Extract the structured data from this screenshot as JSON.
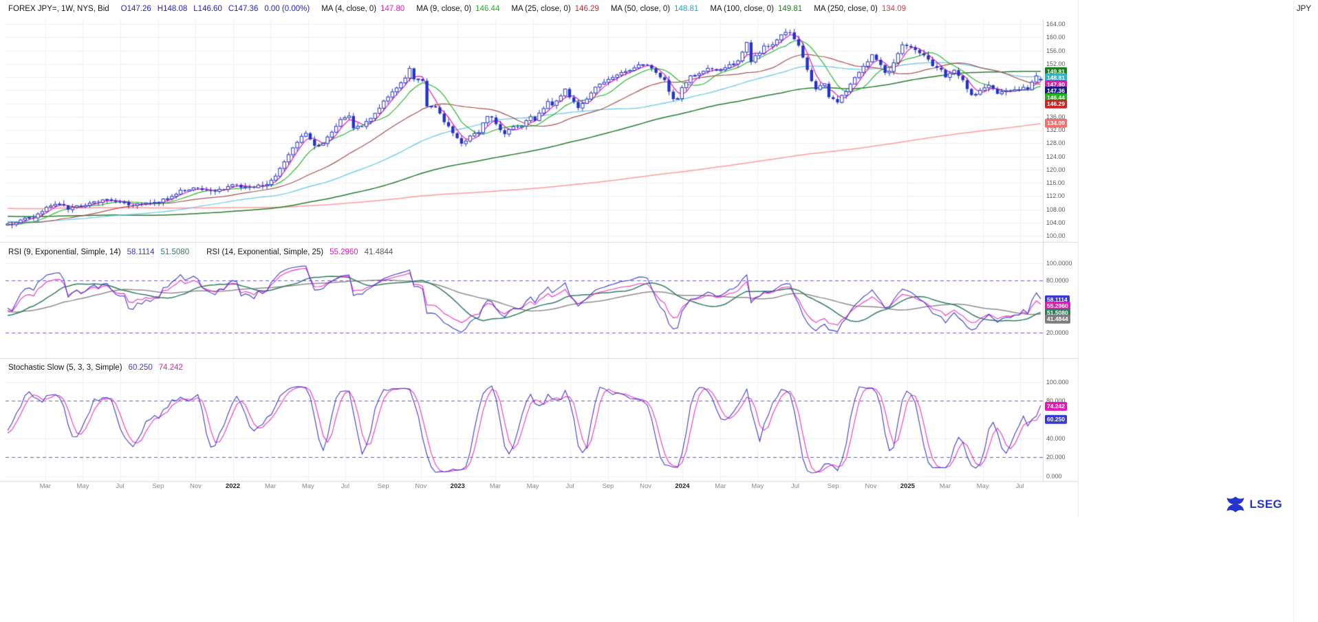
{
  "header": {
    "instrument": "FOREX JPY=, 1W, NYS, Bid",
    "ohlc": {
      "open": "O147.26",
      "high": "H148.08",
      "low": "L146.60",
      "close": "C147.36",
      "change": "0.00 (0.00%)"
    },
    "ohlc_color": "#2121cc",
    "ma_legend": [
      {
        "label": "MA (4, close, 0)",
        "value": "147.80",
        "color": "#e618b4"
      },
      {
        "label": "MA (9, close, 0)",
        "value": "146.44",
        "color": "#23b123"
      },
      {
        "label": "MA (25, close, 0)",
        "value": "146.29",
        "color": "#c62828"
      },
      {
        "label": "MA (50, close, 0)",
        "value": "148.81",
        "color": "#1ba7c9"
      },
      {
        "label": "MA (100, close, 0)",
        "value": "149.81",
        "color": "#1e7d1e"
      },
      {
        "label": "MA (250, close, 0)",
        "value": "134.09",
        "color": "#e23b3b"
      }
    ]
  },
  "right_tab": {
    "label": "JPY"
  },
  "rsi_panel": {
    "title1": "RSI (9, Exponential, Simple, 14)",
    "value1": "58.1114",
    "value2": "51.5080",
    "title2": "RSI (14, Exponential, Simple, 25)",
    "value3": "55.2960",
    "value4": "41.4844",
    "axis_labels": [
      {
        "text": "100.0000",
        "v": 100
      },
      {
        "text": "80.0000",
        "v": 80
      },
      {
        "text": "20.0000",
        "v": 20
      }
    ],
    "badges": [
      {
        "text": "58.1114",
        "color": "#3a3ad0",
        "v": 58.1114
      },
      {
        "text": "55.2960",
        "color": "#e618b4",
        "v": 55.296
      },
      {
        "text": "51.5080",
        "color": "#2e7d5b",
        "v": 51.508
      },
      {
        "text": "41.4844",
        "color": "#7d7d7d",
        "v": 41.4844
      }
    ]
  },
  "stoch_panel": {
    "title": "Stochastic Slow (5, 3, 3, Simple)",
    "value1": "60.250",
    "value2": "74.242",
    "axis_labels": [
      {
        "text": "100.000",
        "v": 100
      },
      {
        "text": "80.000",
        "v": 80
      },
      {
        "text": "40.000",
        "v": 40
      },
      {
        "text": "20.000",
        "v": 20
      },
      {
        "text": "0.000",
        "v": 0
      }
    ],
    "badges": [
      {
        "text": "74.242",
        "color": "#e618b4",
        "v": 74.242
      },
      {
        "text": "60.250",
        "color": "#3a3ad0",
        "v": 60.25
      }
    ]
  },
  "price_axis": {
    "labels": [
      {
        "text": "164.00",
        "v": 164
      },
      {
        "text": "160.00",
        "v": 160
      },
      {
        "text": "156.00",
        "v": 156
      },
      {
        "text": "152.00",
        "v": 152
      },
      {
        "text": "148.00",
        "v": 148
      },
      {
        "text": "144.00",
        "v": 144
      },
      {
        "text": "140.00",
        "v": 140
      },
      {
        "text": "136.00",
        "v": 136
      },
      {
        "text": "132.00",
        "v": 132
      },
      {
        "text": "128.00",
        "v": 128
      },
      {
        "text": "124.00",
        "v": 124
      },
      {
        "text": "120.00",
        "v": 120
      },
      {
        "text": "116.00",
        "v": 116
      },
      {
        "text": "112.00",
        "v": 112
      },
      {
        "text": "108.00",
        "v": 108
      },
      {
        "text": "104.00",
        "v": 104
      },
      {
        "text": "100.00",
        "v": 100
      }
    ]
  },
  "price_badges": [
    {
      "text": "149.81",
      "color": "#1e7d1e",
      "v": 149.81
    },
    {
      "text": "148.81",
      "color": "#27b5ce",
      "v": 148.81
    },
    {
      "text": "147.80",
      "color": "#e618b4",
      "v": 147.8
    },
    {
      "text": "147.36",
      "color": "#181d86",
      "v": 147.36
    },
    {
      "text": "146.44",
      "color": "#23b123",
      "v": 146.44
    },
    {
      "text": "146.29",
      "color": "#c62828",
      "v": 146.29
    },
    {
      "text": "134.09",
      "color": "#f07070",
      "v": 134.09
    }
  ],
  "x_axis": {
    "labels": [
      {
        "text": "Mar",
        "week": 8.7,
        "year": false
      },
      {
        "text": "May",
        "week": 17.4,
        "year": false
      },
      {
        "text": "Jul",
        "week": 26,
        "year": false
      },
      {
        "text": "Sep",
        "week": 34.8,
        "year": false
      },
      {
        "text": "Nov",
        "week": 43.5,
        "year": false
      },
      {
        "text": "2022",
        "week": 52.1,
        "year": true
      },
      {
        "text": "Mar",
        "week": 60.8,
        "year": false
      },
      {
        "text": "May",
        "week": 69.5,
        "year": false
      },
      {
        "text": "Jul",
        "week": 78.1,
        "year": false
      },
      {
        "text": "Sep",
        "week": 86.9,
        "year": false
      },
      {
        "text": "Nov",
        "week": 95.6,
        "year": false
      },
      {
        "text": "2023",
        "week": 104.1,
        "year": true
      },
      {
        "text": "Mar",
        "week": 112.8,
        "year": false
      },
      {
        "text": "May",
        "week": 121.5,
        "year": false
      },
      {
        "text": "Jul",
        "week": 130.1,
        "year": false
      },
      {
        "text": "Sep",
        "week": 138.9,
        "year": false
      },
      {
        "text": "Nov",
        "week": 147.6,
        "year": false
      },
      {
        "text": "2024",
        "week": 156.1,
        "year": true
      },
      {
        "text": "Mar",
        "week": 164.9,
        "year": false
      },
      {
        "text": "May",
        "week": 173.5,
        "year": false
      },
      {
        "text": "Jul",
        "week": 182.2,
        "year": false
      },
      {
        "text": "Sep",
        "week": 191,
        "year": false
      },
      {
        "text": "Nov",
        "week": 199.7,
        "year": false
      },
      {
        "text": "2025",
        "week": 208.2,
        "year": true
      },
      {
        "text": "Mar",
        "week": 216.9,
        "year": false
      },
      {
        "text": "May",
        "week": 225.6,
        "year": false
      },
      {
        "text": "Jul",
        "week": 234.2,
        "year": false
      }
    ]
  },
  "logo": {
    "text": "LSEG"
  },
  "chart_data": {
    "type": "candlestick",
    "title": "FOREX JPY=, 1W, NYS, Bid",
    "interval": "1W",
    "ylim": [
      99,
      165.5
    ],
    "visible_weeks": 240,
    "x_start": "2021-01",
    "x_end": "2025-08",
    "last_ohlc": {
      "open": 147.26,
      "high": 148.08,
      "low": 146.6,
      "close": 147.36,
      "change_pct": 0
    },
    "candle_color": "#2433c9",
    "noise_seed": 7,
    "bands": {
      "upper": 80,
      "lower": 20,
      "color": "#5a5ae0"
    },
    "moving_averages": [
      {
        "period": 4,
        "last": 147.8,
        "color": "#e618b4"
      },
      {
        "period": 9,
        "last": 146.44,
        "color": "#2db82d"
      },
      {
        "period": 25,
        "last": 146.29,
        "color": "#a8504e"
      },
      {
        "period": 50,
        "last": 148.81,
        "color": "#5fc6e8"
      },
      {
        "period": 100,
        "last": 149.81,
        "color": "#2a7a2a"
      },
      {
        "period": 250,
        "last": 134.09,
        "color": "#ff9a9a"
      }
    ],
    "rsi": [
      {
        "period": 9,
        "smoothing": "Exponential",
        "ma_type": "Simple",
        "ma_period": 14,
        "last": 58.1114,
        "ma_last": 51.508,
        "color": "#3a3ad0",
        "ma_color": "#2e7d5b"
      },
      {
        "period": 14,
        "smoothing": "Exponential",
        "ma_type": "Simple",
        "ma_period": 25,
        "last": 55.296,
        "ma_last": 41.4844,
        "color": "#ef2fc0",
        "ma_color": "#8c8c8c"
      }
    ],
    "stochastic": {
      "k": 5,
      "k_slow": 3,
      "d": 3,
      "ma_type": "Simple",
      "last_k": 60.25,
      "last_d": 74.242,
      "k_color": "#3a3ad0",
      "d_color": "#ef2fc0"
    },
    "close_anchors": [
      [
        -260,
        118
      ],
      [
        -252,
        112
      ],
      [
        -246,
        107
      ],
      [
        -240,
        101.5
      ],
      [
        -236,
        104
      ],
      [
        -228,
        109
      ],
      [
        -220,
        111.2
      ],
      [
        -214,
        114
      ],
      [
        -208,
        112.5
      ],
      [
        -200,
        111
      ],
      [
        -192,
        113.5
      ],
      [
        -184,
        111
      ],
      [
        -176,
        109.5
      ],
      [
        -168,
        107.2
      ],
      [
        -160,
        110
      ],
      [
        -152,
        112.8
      ],
      [
        -144,
        112.4
      ],
      [
        -136,
        111
      ],
      [
        -128,
        110
      ],
      [
        -120,
        109
      ],
      [
        -112,
        108.2
      ],
      [
        -104,
        108.6
      ],
      [
        -96,
        106
      ],
      [
        -88,
        105.5
      ],
      [
        -80,
        107
      ],
      [
        -72,
        111.8
      ],
      [
        -64,
        108
      ],
      [
        -56,
        106.6
      ],
      [
        -48,
        105.6
      ],
      [
        -40,
        104.6
      ],
      [
        -32,
        103.6
      ],
      [
        -24,
        105
      ],
      [
        -16,
        104.4
      ],
      [
        -8,
        103.6
      ],
      [
        -1,
        103.3
      ],
      [
        0,
        103.2
      ],
      [
        3,
        104.9
      ],
      [
        6,
        105.6
      ],
      [
        9,
        108.7
      ],
      [
        12,
        109.9
      ],
      [
        14,
        108.1
      ],
      [
        17,
        109.2
      ],
      [
        20,
        110
      ],
      [
        23,
        110.9
      ],
      [
        26,
        110.5
      ],
      [
        28,
        109.1
      ],
      [
        31,
        110
      ],
      [
        34,
        109.9
      ],
      [
        37,
        111.5
      ],
      [
        40,
        113.5
      ],
      [
        42,
        114.3
      ],
      [
        45,
        113.9
      ],
      [
        47,
        113.4
      ],
      [
        50,
        114.4
      ],
      [
        52,
        115.3
      ],
      [
        55,
        114.8
      ],
      [
        58,
        115
      ],
      [
        60,
        115.8
      ],
      [
        62,
        118.2
      ],
      [
        64,
        122.1
      ],
      [
        66,
        126.4
      ],
      [
        68,
        129.8
      ],
      [
        69,
        130.9
      ],
      [
        71,
        127.1
      ],
      [
        73,
        128
      ],
      [
        75,
        131.5
      ],
      [
        77,
        135.2
      ],
      [
        79,
        136.1
      ],
      [
        80,
        132.6
      ],
      [
        82,
        133.3
      ],
      [
        84,
        135.5
      ],
      [
        86,
        138.7
      ],
      [
        88,
        142.3
      ],
      [
        90,
        144.7
      ],
      [
        92,
        147.6
      ],
      [
        93,
        151
      ],
      [
        94,
        147.4
      ],
      [
        96,
        146.7
      ],
      [
        97,
        139.1
      ],
      [
        99,
        139
      ],
      [
        100,
        136.6
      ],
      [
        102,
        132.9
      ],
      [
        103,
        131.1
      ],
      [
        104,
        129.8
      ],
      [
        105,
        127.9
      ],
      [
        107,
        129.9
      ],
      [
        109,
        131.2
      ],
      [
        111,
        136.4
      ],
      [
        112,
        135.8
      ],
      [
        115,
        130.6
      ],
      [
        117,
        133.3
      ],
      [
        119,
        133.2
      ],
      [
        121,
        136.2
      ],
      [
        122,
        134.8
      ],
      [
        125,
        140.6
      ],
      [
        126,
        139.3
      ],
      [
        129,
        144.3
      ],
      [
        130,
        142.2
      ],
      [
        132,
        138.7
      ],
      [
        134,
        141.1
      ],
      [
        136,
        144.9
      ],
      [
        138,
        146.4
      ],
      [
        140,
        147.8
      ],
      [
        142,
        149.3
      ],
      [
        144,
        149.8
      ],
      [
        146,
        151.4
      ],
      [
        148,
        151.5
      ],
      [
        150,
        149.6
      ],
      [
        152,
        146.7
      ],
      [
        154,
        141
      ],
      [
        155,
        141.9
      ],
      [
        156,
        144.6
      ],
      [
        158,
        148.1
      ],
      [
        160,
        149.3
      ],
      [
        162,
        150.5
      ],
      [
        164,
        150.1
      ],
      [
        167,
        151.4
      ],
      [
        169,
        153.2
      ],
      [
        171,
        158.3
      ],
      [
        172,
        153
      ],
      [
        175,
        157
      ],
      [
        177,
        157.4
      ],
      [
        179,
        160.9
      ],
      [
        181,
        161.7
      ],
      [
        183,
        157.4
      ],
      [
        184,
        153.7
      ],
      [
        186,
        146.6
      ],
      [
        187,
        144.4
      ],
      [
        189,
        146.2
      ],
      [
        190,
        142.3
      ],
      [
        192,
        140.6
      ],
      [
        194,
        143.9
      ],
      [
        196,
        148.2
      ],
      [
        199,
        152.3
      ],
      [
        200,
        154.7
      ],
      [
        203,
        149.7
      ],
      [
        204,
        150
      ],
      [
        207,
        157.8
      ],
      [
        208,
        157.7
      ],
      [
        210,
        156.3
      ],
      [
        212,
        155
      ],
      [
        214,
        151.4
      ],
      [
        216,
        150.6
      ],
      [
        217,
        148
      ],
      [
        219,
        149.8
      ],
      [
        221,
        146.9
      ],
      [
        222,
        144
      ],
      [
        223,
        142.2
      ],
      [
        225,
        143.7
      ],
      [
        227,
        145.3
      ],
      [
        229,
        142.8
      ],
      [
        231,
        144
      ],
      [
        233,
        143.9
      ],
      [
        235,
        144.7
      ],
      [
        236,
        144.6
      ],
      [
        238,
        148.3
      ],
      [
        239,
        147.36
      ]
    ]
  }
}
